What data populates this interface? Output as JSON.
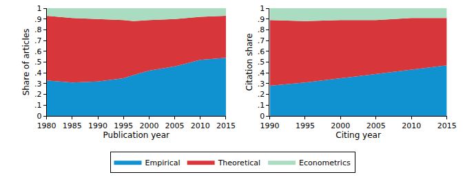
{
  "chart_data": [
    {
      "type": "area",
      "stacked": true,
      "legend": "bottom",
      "grid": false,
      "x_label": "Publication year",
      "y_label": "Share of articles",
      "x": [
        1980,
        1985,
        1990,
        1995,
        1997,
        2000,
        2005,
        2010,
        2015
      ],
      "xlim": [
        1980,
        2015
      ],
      "xticks": [
        1980,
        1985,
        1990,
        1995,
        2000,
        2005,
        2010,
        2015
      ],
      "ylim": [
        0,
        1
      ],
      "yticks": [
        0,
        {
          "value": 0.1,
          "label": ".1"
        },
        {
          "value": 0.2,
          "label": ".2"
        },
        {
          "value": 0.3,
          "label": ".3"
        },
        {
          "value": 0.4,
          "label": ".4"
        },
        {
          "value": 0.5,
          "label": ".5"
        },
        {
          "value": 0.6,
          "label": ".6"
        },
        {
          "value": 0.7,
          "label": ".7"
        },
        {
          "value": 0.8,
          "label": ".8"
        },
        {
          "value": 0.9,
          "label": ".9"
        },
        1
      ],
      "series": [
        {
          "name": "Empirical",
          "color": "#1192d0",
          "values": [
            0.33,
            0.31,
            0.32,
            0.35,
            0.38,
            0.42,
            0.46,
            0.52,
            0.54
          ]
        },
        {
          "name": "Theoretical",
          "color": "#d7373a",
          "values": [
            0.6,
            0.6,
            0.58,
            0.54,
            0.5,
            0.47,
            0.44,
            0.4,
            0.39
          ]
        },
        {
          "name": "Econometrics",
          "color": "#a9dcc0",
          "values": [
            0.07,
            0.09,
            0.1,
            0.11,
            0.12,
            0.11,
            0.1,
            0.08,
            0.07
          ]
        }
      ]
    },
    {
      "type": "area",
      "stacked": true,
      "legend": "bottom",
      "grid": false,
      "x_label": "Citing year",
      "y_label": "Citation share",
      "x": [
        1990,
        1995,
        2000,
        2005,
        2010,
        2015
      ],
      "xlim": [
        1990,
        2015
      ],
      "xticks": [
        1990,
        1995,
        2000,
        2005,
        2010,
        2015
      ],
      "ylim": [
        0,
        1
      ],
      "yticks": [
        0,
        {
          "value": 0.1,
          "label": ".1"
        },
        {
          "value": 0.2,
          "label": ".2"
        },
        {
          "value": 0.3,
          "label": ".3"
        },
        {
          "value": 0.4,
          "label": ".4"
        },
        {
          "value": 0.5,
          "label": ".5"
        },
        {
          "value": 0.6,
          "label": ".6"
        },
        {
          "value": 0.7,
          "label": ".7"
        },
        {
          "value": 0.8,
          "label": ".8"
        },
        {
          "value": 0.9,
          "label": ".9"
        },
        1
      ],
      "series": [
        {
          "name": "Empirical",
          "color": "#1192d0",
          "values": [
            0.28,
            0.31,
            0.35,
            0.39,
            0.43,
            0.47
          ]
        },
        {
          "name": "Theoretical",
          "color": "#d7373a",
          "values": [
            0.61,
            0.57,
            0.54,
            0.5,
            0.48,
            0.44
          ]
        },
        {
          "name": "Econometrics",
          "color": "#a9dcc0",
          "values": [
            0.11,
            0.12,
            0.11,
            0.11,
            0.09,
            0.09
          ]
        }
      ]
    }
  ]
}
